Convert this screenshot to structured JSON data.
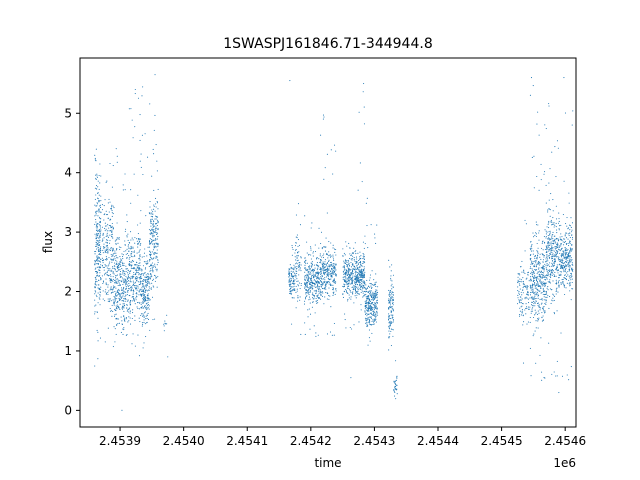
{
  "chart_data": {
    "type": "scatter",
    "title": "1SWASPJ161846.71-344944.8",
    "xlabel": "time",
    "ylabel": "flux",
    "x_offset_label": "1e6",
    "xlim": [
      2453837,
      2454617
    ],
    "ylim": [
      -0.28,
      5.93
    ],
    "x_ticks": [
      2.4539,
      2.454,
      2.4541,
      2.4542,
      2.4543,
      2.4544,
      2.4545,
      2.4546
    ],
    "x_tick_labels": [
      "2.4539",
      "2.4540",
      "2.4541",
      "2.4542",
      "2.4543",
      "2.4544",
      "2.4545",
      "2.4546"
    ],
    "y_ticks": [
      0,
      1,
      2,
      3,
      4,
      5
    ],
    "y_tick_labels": [
      "0",
      "1",
      "2",
      "3",
      "4",
      "5"
    ],
    "marker_color": "#1f77b4",
    "grid": false,
    "series": [
      {
        "segments": [
          {
            "x": [
              2453860,
              2453870
            ],
            "center": 2.8,
            "spread": 1.1,
            "min": 0.7,
            "max": 4.5,
            "n": 260
          },
          {
            "x": [
              2453872,
              2453890
            ],
            "center": 2.6,
            "spread": 1.0,
            "min": 1.0,
            "max": 4.2,
            "n": 240
          },
          {
            "x": [
              2453890,
              2453910
            ],
            "center": 2.1,
            "spread": 0.7,
            "min": 1.0,
            "max": 4.5,
            "n": 300
          },
          {
            "x": [
              2453910,
              2453933
            ],
            "center": 2.3,
            "spread": 0.8,
            "min": 0.6,
            "max": 5.4,
            "n": 320
          },
          {
            "x": [
              2453933,
              2453946
            ],
            "center": 2.0,
            "spread": 0.6,
            "min": 0.7,
            "max": 5.5,
            "n": 200
          },
          {
            "x": [
              2453946,
              2453960
            ],
            "center": 2.8,
            "spread": 0.8,
            "min": 0.8,
            "max": 5.6,
            "n": 220
          },
          {
            "x": [
              2453968,
              2453974
            ],
            "center": 1.5,
            "spread": 0.2,
            "min": 0.8,
            "max": 1.6,
            "n": 8
          },
          {
            "x": [
              2454165,
              2454175
            ],
            "center": 2.2,
            "spread": 0.3,
            "min": 1.4,
            "max": 2.9,
            "n": 100
          },
          {
            "x": [
              2454175,
              2454185
            ],
            "center": 2.4,
            "spread": 0.5,
            "min": 1.2,
            "max": 4.0,
            "n": 80
          },
          {
            "x": [
              2454190,
              2454215
            ],
            "center": 2.2,
            "spread": 0.4,
            "min": 1.2,
            "max": 3.4,
            "n": 320
          },
          {
            "x": [
              2454215,
              2454240
            ],
            "center": 2.3,
            "spread": 0.4,
            "min": 1.2,
            "max": 5.0,
            "n": 300
          },
          {
            "x": [
              2454250,
              2454270
            ],
            "center": 2.3,
            "spread": 0.4,
            "min": 1.3,
            "max": 3.0,
            "n": 240
          },
          {
            "x": [
              2454270,
              2454285
            ],
            "center": 2.3,
            "spread": 0.4,
            "min": 1.0,
            "max": 5.5,
            "n": 240
          },
          {
            "x": [
              2454285,
              2454305
            ],
            "center": 1.8,
            "spread": 0.4,
            "min": 0.9,
            "max": 3.6,
            "n": 300
          },
          {
            "x": [
              2454322,
              2454330
            ],
            "center": 1.7,
            "spread": 0.5,
            "min": 0.8,
            "max": 2.7,
            "n": 120
          },
          {
            "x": [
              2454330,
              2454336
            ],
            "center": 0.4,
            "spread": 0.2,
            "min": 0.13,
            "max": 0.9,
            "n": 30
          },
          {
            "x": [
              2454525,
              2454545
            ],
            "center": 2.0,
            "spread": 0.5,
            "min": 0.7,
            "max": 3.5,
            "n": 120
          },
          {
            "x": [
              2454545,
              2454570
            ],
            "center": 2.2,
            "spread": 0.7,
            "min": 0.4,
            "max": 5.6,
            "n": 400
          },
          {
            "x": [
              2454570,
              2454590
            ],
            "center": 2.6,
            "spread": 0.7,
            "min": 0.5,
            "max": 5.2,
            "n": 320
          },
          {
            "x": [
              2454590,
              2454612
            ],
            "center": 2.6,
            "spread": 0.6,
            "min": 0.3,
            "max": 5.6,
            "n": 300
          }
        ],
        "outliers": [
          {
            "x": 2453903,
            "y": 0.0
          },
          {
            "x": 2453924,
            "y": 5.4
          },
          {
            "x": 2453955,
            "y": 5.65
          },
          {
            "x": 2454167,
            "y": 5.55
          },
          {
            "x": 2454263,
            "y": 0.55
          },
          {
            "x": 2454283,
            "y": 5.5
          },
          {
            "x": 2454547,
            "y": 5.6
          },
          {
            "x": 2454598,
            "y": 5.6
          },
          {
            "x": 2454590,
            "y": 0.3
          },
          {
            "x": 2453975,
            "y": 0.9
          }
        ]
      }
    ]
  }
}
